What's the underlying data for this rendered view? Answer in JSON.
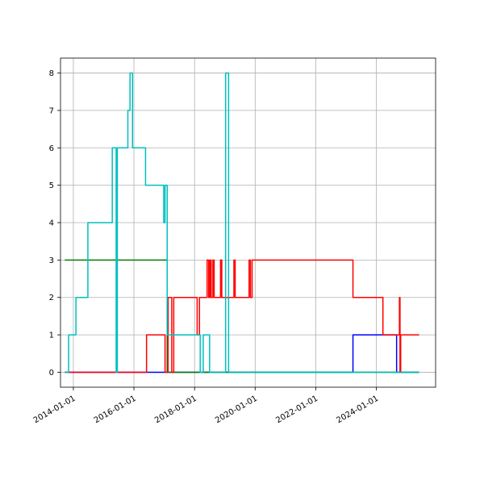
{
  "chart_data": {
    "type": "line",
    "line_shape": "step",
    "title": "",
    "xlabel": "",
    "ylabel": "",
    "x_axis_type": "date",
    "xlim": [
      "2013-07-30",
      "2025-12-15"
    ],
    "ylim": [
      -0.4,
      8.4
    ],
    "x_ticks": [
      "2014-01-01",
      "2016-01-01",
      "2018-01-01",
      "2020-01-01",
      "2022-01-01",
      "2024-01-01"
    ],
    "y_ticks": [
      0,
      1,
      2,
      3,
      4,
      5,
      6,
      7,
      8
    ],
    "grid": true,
    "legend": false,
    "series": [
      {
        "color": "#0000ff",
        "points": [
          [
            "2013-09-20",
            0
          ],
          [
            "2023-03-25",
            0
          ],
          [
            "2023-03-25",
            1
          ],
          [
            "2024-09-01",
            1
          ],
          [
            "2024-09-01",
            0
          ],
          [
            "2025-05-30",
            0
          ]
        ]
      },
      {
        "color": "#008000",
        "points": [
          [
            "2013-09-20",
            3
          ],
          [
            "2017-02-05",
            3
          ],
          [
            "2017-02-05",
            0
          ],
          [
            "2025-05-30",
            0
          ]
        ]
      },
      {
        "color": "#ff0000",
        "points": [
          [
            "2013-09-20",
            0
          ],
          [
            "2016-06-01",
            0
          ],
          [
            "2016-06-01",
            1
          ],
          [
            "2017-01-10",
            1
          ],
          [
            "2017-01-10",
            0
          ],
          [
            "2017-02-15",
            0
          ],
          [
            "2017-02-15",
            2
          ],
          [
            "2017-04-01",
            2
          ],
          [
            "2017-04-01",
            0
          ],
          [
            "2017-04-25",
            0
          ],
          [
            "2017-04-25",
            2
          ],
          [
            "2018-02-01",
            2
          ],
          [
            "2018-02-01",
            1
          ],
          [
            "2018-03-01",
            1
          ],
          [
            "2018-03-01",
            2
          ],
          [
            "2018-06-01",
            2
          ],
          [
            "2018-06-01",
            3
          ],
          [
            "2018-06-20",
            3
          ],
          [
            "2018-06-20",
            2
          ],
          [
            "2018-07-05",
            2
          ],
          [
            "2018-07-05",
            3
          ],
          [
            "2018-07-20",
            3
          ],
          [
            "2018-07-20",
            2
          ],
          [
            "2018-08-10",
            2
          ],
          [
            "2018-08-10",
            3
          ],
          [
            "2018-08-25",
            3
          ],
          [
            "2018-08-25",
            2
          ],
          [
            "2018-11-10",
            2
          ],
          [
            "2018-11-10",
            3
          ],
          [
            "2018-11-25",
            3
          ],
          [
            "2018-11-25",
            2
          ],
          [
            "2019-04-20",
            2
          ],
          [
            "2019-04-20",
            3
          ],
          [
            "2019-05-05",
            3
          ],
          [
            "2019-05-05",
            2
          ],
          [
            "2019-10-20",
            2
          ],
          [
            "2019-10-20",
            3
          ],
          [
            "2019-11-05",
            3
          ],
          [
            "2019-11-05",
            2
          ],
          [
            "2019-11-25",
            2
          ],
          [
            "2019-11-25",
            3
          ],
          [
            "2023-03-25",
            3
          ],
          [
            "2023-03-25",
            2
          ],
          [
            "2024-03-20",
            2
          ],
          [
            "2024-03-20",
            1
          ],
          [
            "2024-10-05",
            1
          ],
          [
            "2024-10-05",
            2
          ],
          [
            "2024-10-12",
            2
          ],
          [
            "2024-10-12",
            0
          ],
          [
            "2024-10-20",
            0
          ],
          [
            "2024-10-20",
            1
          ],
          [
            "2025-05-30",
            1
          ]
        ]
      },
      {
        "color": "#00bfbf",
        "points": [
          [
            "2013-09-20",
            0
          ],
          [
            "2013-11-05",
            0
          ],
          [
            "2013-11-05",
            1
          ],
          [
            "2014-02-01",
            1
          ],
          [
            "2014-02-01",
            2
          ],
          [
            "2014-06-25",
            2
          ],
          [
            "2014-06-25",
            4
          ],
          [
            "2015-04-15",
            4
          ],
          [
            "2015-04-15",
            6
          ],
          [
            "2015-06-01",
            6
          ],
          [
            "2015-06-01",
            0
          ],
          [
            "2015-06-15",
            0
          ],
          [
            "2015-06-15",
            6
          ],
          [
            "2015-10-20",
            6
          ],
          [
            "2015-10-20",
            7
          ],
          [
            "2015-11-15",
            7
          ],
          [
            "2015-11-15",
            8
          ],
          [
            "2015-12-15",
            8
          ],
          [
            "2015-12-15",
            6
          ],
          [
            "2016-05-20",
            6
          ],
          [
            "2016-05-20",
            5
          ],
          [
            "2016-12-25",
            5
          ],
          [
            "2016-12-25",
            4
          ],
          [
            "2017-01-10",
            4
          ],
          [
            "2017-01-10",
            5
          ],
          [
            "2017-02-05",
            5
          ],
          [
            "2017-02-05",
            1
          ],
          [
            "2018-03-10",
            1
          ],
          [
            "2018-03-10",
            0
          ],
          [
            "2018-04-15",
            0
          ],
          [
            "2018-04-15",
            1
          ],
          [
            "2018-07-01",
            1
          ],
          [
            "2018-07-01",
            0
          ],
          [
            "2019-01-10",
            0
          ],
          [
            "2019-01-10",
            8
          ],
          [
            "2019-02-15",
            8
          ],
          [
            "2019-02-15",
            0
          ],
          [
            "2025-05-30",
            0
          ]
        ]
      }
    ]
  }
}
